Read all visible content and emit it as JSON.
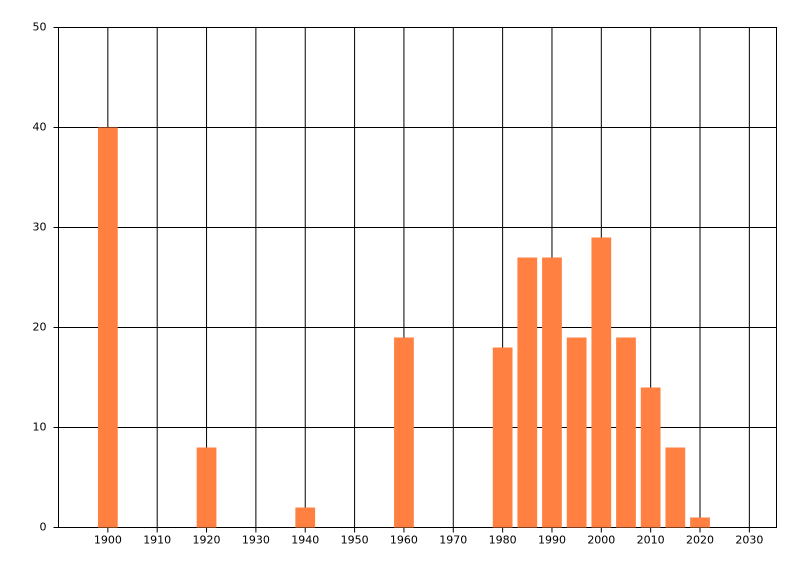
{
  "chart_data": {
    "type": "bar",
    "x": [
      1900,
      1920,
      1940,
      1960,
      1980,
      1985,
      1990,
      1995,
      2000,
      2005,
      2010,
      2015,
      2020
    ],
    "values": [
      40,
      8,
      2,
      19,
      18,
      27,
      27,
      19,
      29,
      19,
      14,
      8,
      1
    ],
    "color": "#ff8040",
    "xlim": [
      1890,
      2035.5
    ],
    "xticks": [
      1900,
      1910,
      1920,
      1930,
      1940,
      1950,
      1960,
      1970,
      1980,
      1990,
      2000,
      2010,
      2020,
      2030
    ],
    "ylim": [
      0,
      50
    ],
    "yticks": [
      0,
      10,
      20,
      30,
      40,
      50
    ],
    "grid": true
  }
}
